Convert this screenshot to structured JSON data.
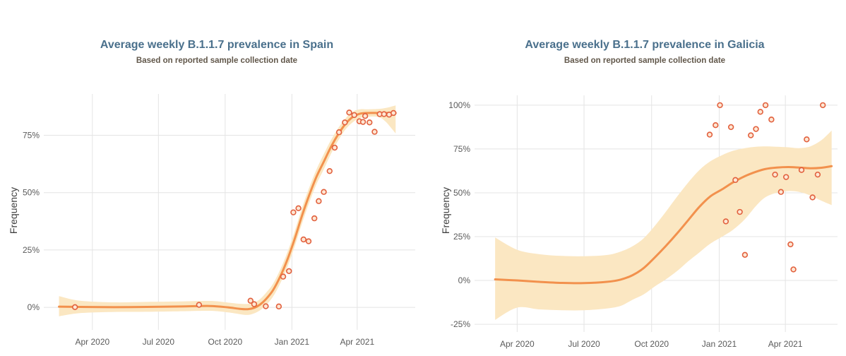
{
  "colors": {
    "trend_line": "#F2914D",
    "confidence_band": "#FBE7C2",
    "point_stroke": "#E2603D",
    "point_fill": "#FDE7D4",
    "gridline": "#E4E4E4",
    "title": "#4A708C",
    "subtitle": "#61574A",
    "tick_label": "#5A5A5A",
    "axis_label": "#3F3F3F",
    "background": "#FFFFFF"
  },
  "chart_data": [
    {
      "type": "scatter",
      "title": "Average weekly B.1.1.7 prevalence in Spain",
      "subtitle": "Based on reported sample collection date",
      "ylabel": "Frequency",
      "grid": true,
      "legend_position": "none",
      "xlim": [
        "2020-01-25",
        "2021-06-20"
      ],
      "ylim": [
        -9.8,
        93
      ],
      "x_ticks": [
        {
          "label": "Apr 2020",
          "date": "2020-04-01"
        },
        {
          "label": "Jul 2020",
          "date": "2020-07-01"
        },
        {
          "label": "Oct 2020",
          "date": "2020-10-01"
        },
        {
          "label": "Jan 2021",
          "date": "2021-01-01"
        },
        {
          "label": "Apr 2021",
          "date": "2021-04-01"
        }
      ],
      "y_ticks": [
        {
          "label": "0%",
          "value": 0
        },
        {
          "label": "25%",
          "value": 25
        },
        {
          "label": "50%",
          "value": 50
        },
        {
          "label": "75%",
          "value": 75
        }
      ],
      "points": [
        {
          "date": "2020-03-08",
          "value": 0.1
        },
        {
          "date": "2020-08-26",
          "value": 1.1
        },
        {
          "date": "2020-11-05",
          "value": 2.9
        },
        {
          "date": "2020-11-10",
          "value": 1.4
        },
        {
          "date": "2020-11-26",
          "value": 0.5
        },
        {
          "date": "2020-12-14",
          "value": 0.4
        },
        {
          "date": "2020-12-20",
          "value": 13.4
        },
        {
          "date": "2020-12-28",
          "value": 15.8
        },
        {
          "date": "2021-01-03",
          "value": 41.4
        },
        {
          "date": "2021-01-10",
          "value": 43.2
        },
        {
          "date": "2021-01-17",
          "value": 29.6
        },
        {
          "date": "2021-01-24",
          "value": 28.8
        },
        {
          "date": "2021-02-01",
          "value": 38.8
        },
        {
          "date": "2021-02-07",
          "value": 46.3
        },
        {
          "date": "2021-02-14",
          "value": 50.3
        },
        {
          "date": "2021-02-22",
          "value": 59.4
        },
        {
          "date": "2021-03-01",
          "value": 69.6
        },
        {
          "date": "2021-03-07",
          "value": 76.3
        },
        {
          "date": "2021-03-15",
          "value": 80.6
        },
        {
          "date": "2021-03-21",
          "value": 84.9
        },
        {
          "date": "2021-03-28",
          "value": 83.8
        },
        {
          "date": "2021-04-04",
          "value": 81.1
        },
        {
          "date": "2021-04-09",
          "value": 80.8
        },
        {
          "date": "2021-04-12",
          "value": 83.4
        },
        {
          "date": "2021-04-18",
          "value": 80.6
        },
        {
          "date": "2021-04-25",
          "value": 76.5
        },
        {
          "date": "2021-05-02",
          "value": 84.2
        },
        {
          "date": "2021-05-08",
          "value": 84.2
        },
        {
          "date": "2021-05-15",
          "value": 84.0
        },
        {
          "date": "2021-05-21",
          "value": 84.7
        }
      ],
      "trend": [
        {
          "date": "2020-02-15",
          "value": 0.3
        },
        {
          "date": "2020-03-15",
          "value": 0.2
        },
        {
          "date": "2020-05-01",
          "value": 0.1
        },
        {
          "date": "2020-06-15",
          "value": 0.2
        },
        {
          "date": "2020-08-01",
          "value": 0.4
        },
        {
          "date": "2020-09-10",
          "value": 0.6
        },
        {
          "date": "2020-10-05",
          "value": 0.0
        },
        {
          "date": "2020-10-20",
          "value": -0.6
        },
        {
          "date": "2020-11-01",
          "value": -0.8
        },
        {
          "date": "2020-11-10",
          "value": -0.2
        },
        {
          "date": "2020-11-18",
          "value": 1.2
        },
        {
          "date": "2020-11-26",
          "value": 3.5
        },
        {
          "date": "2020-12-06",
          "value": 7.5
        },
        {
          "date": "2020-12-16",
          "value": 13.5
        },
        {
          "date": "2020-12-26",
          "value": 21.0
        },
        {
          "date": "2021-01-05",
          "value": 30.0
        },
        {
          "date": "2021-01-15",
          "value": 40.0
        },
        {
          "date": "2021-01-25",
          "value": 49.0
        },
        {
          "date": "2021-02-04",
          "value": 57.0
        },
        {
          "date": "2021-02-14",
          "value": 63.5
        },
        {
          "date": "2021-02-24",
          "value": 70.0
        },
        {
          "date": "2021-03-06",
          "value": 75.5
        },
        {
          "date": "2021-03-16",
          "value": 80.0
        },
        {
          "date": "2021-03-26",
          "value": 83.0
        },
        {
          "date": "2021-04-05",
          "value": 84.4
        },
        {
          "date": "2021-04-15",
          "value": 84.7
        },
        {
          "date": "2021-05-01",
          "value": 84.7
        },
        {
          "date": "2021-05-24",
          "value": 84.7
        }
      ],
      "band": [
        {
          "date": "2020-02-15",
          "upper": 4.9,
          "lower": -3.9
        },
        {
          "date": "2020-03-15",
          "upper": 2.9,
          "lower": -2.5
        },
        {
          "date": "2020-05-01",
          "upper": 2.2,
          "lower": -2.0
        },
        {
          "date": "2020-06-15",
          "upper": 2.4,
          "lower": -1.9
        },
        {
          "date": "2020-08-01",
          "upper": 2.6,
          "lower": -1.7
        },
        {
          "date": "2020-09-10",
          "upper": 2.8,
          "lower": -1.5
        },
        {
          "date": "2020-10-05",
          "upper": 2.1,
          "lower": -2.2
        },
        {
          "date": "2020-10-20",
          "upper": 1.6,
          "lower": -2.9
        },
        {
          "date": "2020-11-01",
          "upper": 1.5,
          "lower": -3.3
        },
        {
          "date": "2020-11-10",
          "upper": 2.1,
          "lower": -2.6
        },
        {
          "date": "2020-11-18",
          "upper": 3.6,
          "lower": -1.3
        },
        {
          "date": "2020-11-26",
          "upper": 6.2,
          "lower": 0.9
        },
        {
          "date": "2020-12-06",
          "upper": 10.3,
          "lower": 4.7
        },
        {
          "date": "2020-12-16",
          "upper": 16.5,
          "lower": 10.5
        },
        {
          "date": "2020-12-26",
          "upper": 24.2,
          "lower": 17.8
        },
        {
          "date": "2021-01-05",
          "upper": 33.3,
          "lower": 26.7
        },
        {
          "date": "2021-01-15",
          "upper": 43.4,
          "lower": 36.6
        },
        {
          "date": "2021-01-25",
          "upper": 52.3,
          "lower": 45.7
        },
        {
          "date": "2021-02-04",
          "upper": 60.2,
          "lower": 53.8
        },
        {
          "date": "2021-02-14",
          "upper": 66.8,
          "lower": 60.2
        },
        {
          "date": "2021-02-24",
          "upper": 73.0,
          "lower": 67.0
        },
        {
          "date": "2021-03-06",
          "upper": 78.2,
          "lower": 72.8
        },
        {
          "date": "2021-03-16",
          "upper": 82.4,
          "lower": 77.6
        },
        {
          "date": "2021-03-26",
          "upper": 85.3,
          "lower": 80.7
        },
        {
          "date": "2021-04-05",
          "upper": 86.3,
          "lower": 82.5
        },
        {
          "date": "2021-04-15",
          "upper": 86.3,
          "lower": 83.1
        },
        {
          "date": "2021-05-01",
          "upper": 86.5,
          "lower": 82.9
        },
        {
          "date": "2021-05-10",
          "upper": 86.9,
          "lower": 81.0
        },
        {
          "date": "2021-05-17",
          "upper": 87.4,
          "lower": 78.5
        },
        {
          "date": "2021-05-24",
          "upper": 88.0,
          "lower": 75.8
        }
      ]
    },
    {
      "type": "scatter",
      "title": "Average weekly B.1.1.7 prevalence in Galicia",
      "subtitle": "Based on reported sample collection date",
      "ylabel": "Frequency",
      "grid": true,
      "legend_position": "none",
      "xlim": [
        "2020-02-03",
        "2021-06-11"
      ],
      "ylim": [
        -29.4,
        105.6
      ],
      "x_ticks": [
        {
          "label": "Apr 2020",
          "date": "2020-04-01"
        },
        {
          "label": "Jul 2020",
          "date": "2020-07-01"
        },
        {
          "label": "Oct 2020",
          "date": "2020-10-01"
        },
        {
          "label": "Jan 2021",
          "date": "2021-01-01"
        },
        {
          "label": "Apr 2021",
          "date": "2021-04-01"
        }
      ],
      "y_ticks": [
        {
          "label": "-25%",
          "value": -25
        },
        {
          "label": "0%",
          "value": 0
        },
        {
          "label": "25%",
          "value": 25
        },
        {
          "label": "50%",
          "value": 50
        },
        {
          "label": "75%",
          "value": 75
        },
        {
          "label": "100%",
          "value": 100
        }
      ],
      "points": [
        {
          "date": "2020-12-19",
          "value": 83.2
        },
        {
          "date": "2020-12-27",
          "value": 88.6
        },
        {
          "date": "2021-01-02",
          "value": 100
        },
        {
          "date": "2021-01-10",
          "value": 33.7
        },
        {
          "date": "2021-01-17",
          "value": 87.5
        },
        {
          "date": "2021-01-23",
          "value": 57.3
        },
        {
          "date": "2021-01-29",
          "value": 39.1
        },
        {
          "date": "2021-02-05",
          "value": 14.6
        },
        {
          "date": "2021-02-13",
          "value": 82.8
        },
        {
          "date": "2021-02-20",
          "value": 86.4
        },
        {
          "date": "2021-02-26",
          "value": 96.2
        },
        {
          "date": "2021-03-05",
          "value": 100
        },
        {
          "date": "2021-03-13",
          "value": 91.8
        },
        {
          "date": "2021-03-18",
          "value": 60.4
        },
        {
          "date": "2021-03-26",
          "value": 50.5
        },
        {
          "date": "2021-04-02",
          "value": 59.0
        },
        {
          "date": "2021-04-08",
          "value": 20.6
        },
        {
          "date": "2021-04-12",
          "value": 6.3
        },
        {
          "date": "2021-04-23",
          "value": 63.0
        },
        {
          "date": "2021-04-30",
          "value": 80.5
        },
        {
          "date": "2021-05-08",
          "value": 47.4
        },
        {
          "date": "2021-05-15",
          "value": 60.4
        },
        {
          "date": "2021-05-22",
          "value": 100
        }
      ],
      "trend": [
        {
          "date": "2020-03-02",
          "value": 0.6
        },
        {
          "date": "2020-04-01",
          "value": 0.0
        },
        {
          "date": "2020-05-01",
          "value": -0.8
        },
        {
          "date": "2020-06-01",
          "value": -1.4
        },
        {
          "date": "2020-07-01",
          "value": -1.5
        },
        {
          "date": "2020-08-01",
          "value": -0.8
        },
        {
          "date": "2020-08-20",
          "value": 0.5
        },
        {
          "date": "2020-09-05",
          "value": 3.0
        },
        {
          "date": "2020-09-20",
          "value": 7.0
        },
        {
          "date": "2020-10-05",
          "value": 13.0
        },
        {
          "date": "2020-10-20",
          "value": 19.5
        },
        {
          "date": "2020-11-05",
          "value": 27.0
        },
        {
          "date": "2020-11-20",
          "value": 34.5
        },
        {
          "date": "2020-12-05",
          "value": 42.0
        },
        {
          "date": "2020-12-20",
          "value": 48.0
        },
        {
          "date": "2021-01-05",
          "value": 52.0
        },
        {
          "date": "2021-01-20",
          "value": 56.0
        },
        {
          "date": "2021-02-05",
          "value": 59.5
        },
        {
          "date": "2021-02-20",
          "value": 62.0
        },
        {
          "date": "2021-03-05",
          "value": 63.6
        },
        {
          "date": "2021-03-20",
          "value": 64.4
        },
        {
          "date": "2021-04-05",
          "value": 64.7
        },
        {
          "date": "2021-04-20",
          "value": 64.4
        },
        {
          "date": "2021-05-05",
          "value": 64.0
        },
        {
          "date": "2021-05-20",
          "value": 64.3
        },
        {
          "date": "2021-06-03",
          "value": 65.2
        }
      ],
      "band": [
        {
          "date": "2020-03-02",
          "upper": 24.5,
          "lower": -22.5
        },
        {
          "date": "2020-04-01",
          "upper": 17.5,
          "lower": -15.5
        },
        {
          "date": "2020-05-01",
          "upper": 15.0,
          "lower": -16.5
        },
        {
          "date": "2020-06-01",
          "upper": 14.0,
          "lower": -17.0
        },
        {
          "date": "2020-07-01",
          "upper": 13.8,
          "lower": -17.0
        },
        {
          "date": "2020-08-01",
          "upper": 14.5,
          "lower": -16.0
        },
        {
          "date": "2020-08-20",
          "upper": 16.5,
          "lower": -14.5
        },
        {
          "date": "2020-09-05",
          "upper": 19.5,
          "lower": -11.0
        },
        {
          "date": "2020-09-20",
          "upper": 24.0,
          "lower": -8.0
        },
        {
          "date": "2020-10-05",
          "upper": 31.0,
          "lower": -3.5
        },
        {
          "date": "2020-10-20",
          "upper": 39.0,
          "lower": 0.5
        },
        {
          "date": "2020-11-05",
          "upper": 48.0,
          "lower": 5.5
        },
        {
          "date": "2020-11-20",
          "upper": 56.0,
          "lower": 11.0
        },
        {
          "date": "2020-12-05",
          "upper": 63.0,
          "lower": 16.0
        },
        {
          "date": "2020-12-20",
          "upper": 68.0,
          "lower": 21.0
        },
        {
          "date": "2021-01-05",
          "upper": 71.5,
          "lower": 25.0
        },
        {
          "date": "2021-01-20",
          "upper": 74.0,
          "lower": 29.0
        },
        {
          "date": "2021-02-05",
          "upper": 75.5,
          "lower": 35.0
        },
        {
          "date": "2021-02-20",
          "upper": 76.3,
          "lower": 42.5
        },
        {
          "date": "2021-03-05",
          "upper": 76.5,
          "lower": 47.5
        },
        {
          "date": "2021-03-20",
          "upper": 76.3,
          "lower": 50.0
        },
        {
          "date": "2021-04-05",
          "upper": 76.0,
          "lower": 51.0
        },
        {
          "date": "2021-04-20",
          "upper": 75.5,
          "lower": 50.5
        },
        {
          "date": "2021-05-05",
          "upper": 76.5,
          "lower": 48.5
        },
        {
          "date": "2021-05-20",
          "upper": 80.0,
          "lower": 45.5
        },
        {
          "date": "2021-06-03",
          "upper": 85.5,
          "lower": 43.0
        }
      ]
    }
  ]
}
